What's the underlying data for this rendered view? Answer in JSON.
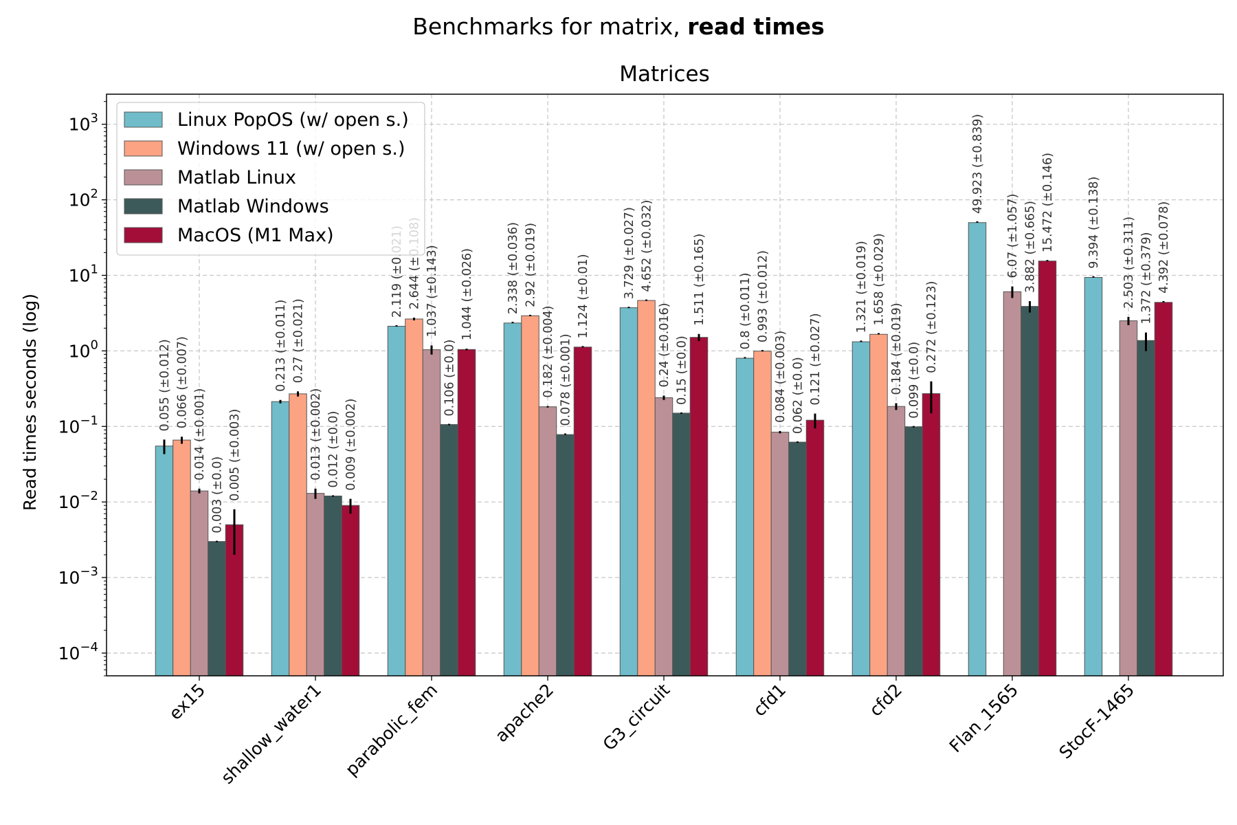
{
  "chart_data": {
    "type": "bar",
    "suptitle": {
      "prefix": "Benchmarks for matrix, ",
      "bold": "read times"
    },
    "title": "Matrices",
    "xlabel": "",
    "ylabel": "Read times seconds (log)",
    "yscale": "log",
    "ylim": [
      5e-05,
      2500
    ],
    "yticks": [
      {
        "value": 0.0001,
        "base": "10",
        "exp": "−4"
      },
      {
        "value": 0.001,
        "base": "10",
        "exp": "−3"
      },
      {
        "value": 0.01,
        "base": "10",
        "exp": "−2"
      },
      {
        "value": 0.1,
        "base": "10",
        "exp": "−1"
      },
      {
        "value": 1,
        "base": "10",
        "exp": "0"
      },
      {
        "value": 10,
        "base": "10",
        "exp": "1"
      },
      {
        "value": 100,
        "base": "10",
        "exp": "2"
      },
      {
        "value": 1000,
        "base": "10",
        "exp": "3"
      }
    ],
    "grid": true,
    "legend_position": "top-left",
    "categories": [
      "ex15",
      "shallow_water1",
      "parabolic_fem",
      "apache2",
      "G3_circuit",
      "cfd1",
      "cfd2",
      "Flan_1565",
      "StocF-1465"
    ],
    "series": [
      {
        "name": "Linux PopOS (w/ open s.)",
        "color": "#70bcca",
        "values": [
          0.055,
          0.213,
          2.119,
          2.338,
          3.729,
          0.8,
          1.321,
          49.923,
          9.394
        ],
        "errors": [
          0.012,
          0.011,
          0.021,
          0.036,
          0.027,
          0.011,
          0.019,
          0.839,
          0.138
        ],
        "labels": [
          "0.055 (±0.012)",
          "0.213 (±0.011)",
          "2.119 (±0.021)",
          "2.338 (±0.036)",
          "3.729 (±0.027)",
          "0.8 (±0.011)",
          "1.321 (±0.019)",
          "49.923 (±0.839)",
          "9.394 (±0.138)"
        ]
      },
      {
        "name": "Windows 11 (w/ open s.)",
        "color": "#fca383",
        "values": [
          0.066,
          0.27,
          2.644,
          2.92,
          4.652,
          0.993,
          1.658,
          null,
          null
        ],
        "errors": [
          0.007,
          0.021,
          0.108,
          0.019,
          0.032,
          0.012,
          0.029,
          null,
          null
        ],
        "labels": [
          "0.066 (±0.007)",
          "0.27 (±0.021)",
          "2.644 (±0.108)",
          "2.92 (±0.019)",
          "4.652 (±0.032)",
          "0.993 (±0.012)",
          "1.658 (±0.029)",
          null,
          null
        ]
      },
      {
        "name": "Matlab Linux",
        "color": "#bb9197",
        "values": [
          0.014,
          0.013,
          1.037,
          0.182,
          0.24,
          0.084,
          0.184,
          6.07,
          2.503
        ],
        "errors": [
          0.001,
          0.002,
          0.143,
          0.004,
          0.016,
          0.003,
          0.019,
          1.057,
          0.311
        ],
        "labels": [
          "0.014 (±0.001)",
          "0.013 (±0.002)",
          "1.037 (±0.143)",
          "0.182 (±0.004)",
          "0.24 (±0.016)",
          "0.084 (±0.003)",
          "0.184 (±0.019)",
          "6.07 (±1.057)",
          "2.503 (±0.311)"
        ]
      },
      {
        "name": "Matlab Windows",
        "color": "#3d5a5a",
        "values": [
          0.003,
          0.012,
          0.106,
          0.078,
          0.15,
          0.062,
          0.099,
          3.882,
          1.372
        ],
        "errors": [
          0.0,
          0.0,
          0.0,
          0.001,
          0.0,
          0.0,
          0.0,
          0.665,
          0.379
        ],
        "labels": [
          "0.003 (±0.0)",
          "0.012 (±0.0)",
          "0.106 (±0.0)",
          "0.078 (±0.001)",
          "0.15 (±0.0)",
          "0.062 (±0.0)",
          "0.099 (±0.0)",
          "3.882 (±0.665)",
          "1.372 (±0.379)"
        ]
      },
      {
        "name": "MacOS (M1 Max)",
        "color": "#a30e39",
        "values": [
          0.005,
          0.009,
          1.044,
          1.124,
          1.511,
          0.121,
          0.272,
          15.472,
          4.392
        ],
        "errors": [
          0.003,
          0.002,
          0.026,
          0.01,
          0.165,
          0.027,
          0.123,
          0.146,
          0.078
        ],
        "labels": [
          "0.005 (±0.003)",
          "0.009 (±0.002)",
          "1.044 (±0.026)",
          "1.124 (±0.01)",
          "1.511 (±0.165)",
          "0.121 (±0.027)",
          "0.272 (±0.123)",
          "15.472 (±0.146)",
          "4.392 (±0.078)"
        ]
      }
    ]
  }
}
